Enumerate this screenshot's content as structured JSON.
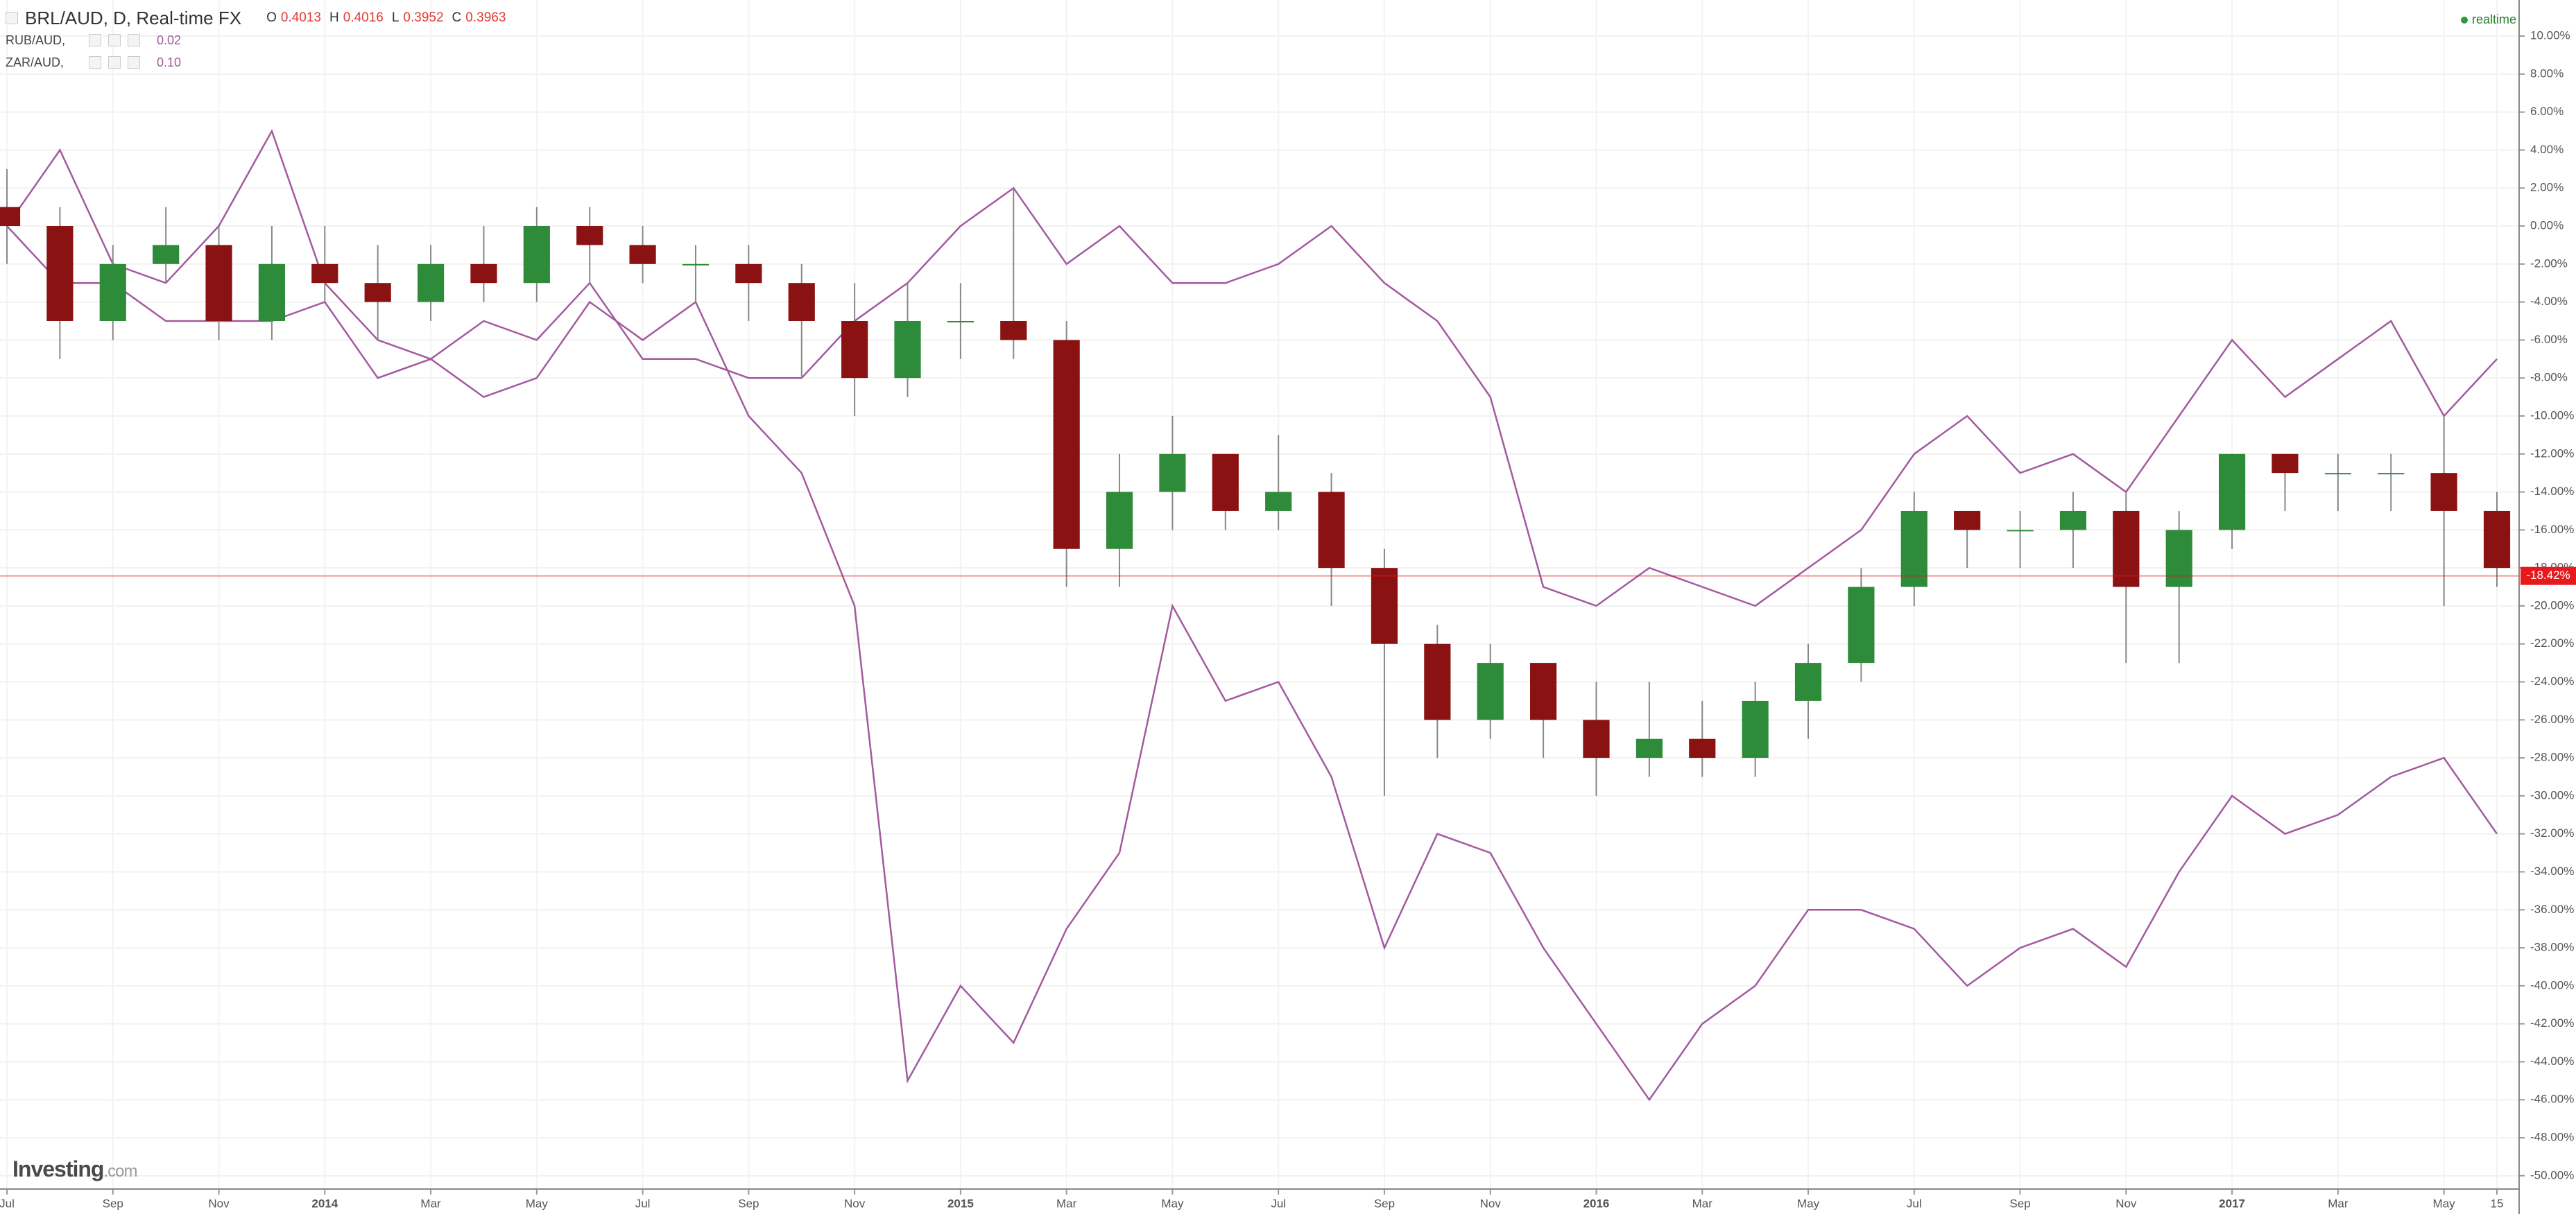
{
  "chart_data": {
    "type": "candlestick",
    "title": "BRL/AUD, D, Real-time FX",
    "quote": [
      {
        "label": "O",
        "value": 0.4013
      },
      {
        "label": "H",
        "value": 0.4016
      },
      {
        "label": "L",
        "value": 0.3952
      },
      {
        "label": "C",
        "value": 0.3963
      }
    ],
    "status": "realtime",
    "brand": "Investing",
    "brand_suffix": ".com",
    "categories": [
      "Jul",
      null,
      "Sep",
      null,
      "Nov",
      null,
      "2014",
      null,
      "Mar",
      null,
      "May",
      null,
      "Jul",
      null,
      "Sep",
      null,
      "Nov",
      null,
      "2015",
      null,
      "Mar",
      null,
      "May",
      null,
      "Jul",
      null,
      "Sep",
      null,
      "Nov",
      null,
      "2016",
      null,
      "Mar",
      null,
      "May",
      null,
      "Jul",
      null,
      "Sep",
      null,
      "Nov",
      null,
      "2017",
      null,
      "Mar",
      null,
      "May",
      "15"
    ],
    "candles": {
      "up_color": "#2e8b3a",
      "down_color": "#8b1212",
      "wick_color": "#888888",
      "open": [
        1,
        0,
        -5,
        -2,
        -1,
        -5,
        -2,
        -3,
        -4,
        -2,
        -3,
        0,
        -1,
        -2,
        -2,
        -3,
        -5,
        -8,
        -5,
        -5,
        -6,
        -17,
        -14,
        -12,
        -15,
        -14,
        -18,
        -22,
        -26,
        -23,
        -26,
        -28,
        -27,
        -28,
        -25,
        -23,
        -19,
        -15,
        -16,
        -16,
        -15,
        -19,
        -16,
        -12,
        -13,
        -13,
        -13,
        -15
      ],
      "high": [
        3,
        1,
        -1,
        1,
        0,
        0,
        0,
        -1,
        -1,
        0,
        1,
        1,
        0,
        -1,
        -1,
        -2,
        -3,
        -3,
        -3,
        2,
        -5,
        -12,
        -10,
        -12,
        -11,
        -13,
        -17,
        -21,
        -22,
        -23,
        -24,
        -24,
        -25,
        -24,
        -22,
        -18,
        -14,
        -15,
        -15,
        -14,
        -14,
        -15,
        -12,
        -12,
        -12,
        -12,
        -10,
        -14
      ],
      "low": [
        -2,
        -7,
        -6,
        -3,
        -6,
        -6,
        -4,
        -6,
        -5,
        -4,
        -4,
        -3,
        -3,
        -4,
        -5,
        -8,
        -10,
        -9,
        -7,
        -7,
        -19,
        -19,
        -16,
        -16,
        -16,
        -20,
        -30,
        -28,
        -27,
        -28,
        -30,
        -29,
        -29,
        -29,
        -27,
        -24,
        -20,
        -18,
        -18,
        -18,
        -23,
        -23,
        -17,
        -15,
        -15,
        -15,
        -20,
        -19
      ],
      "close": [
        0,
        -5,
        -2,
        -1,
        -5,
        -2,
        -3,
        -4,
        -2,
        -3,
        0,
        -1,
        -2,
        -2,
        -3,
        -5,
        -8,
        -5,
        -5,
        -6,
        -17,
        -14,
        -12,
        -15,
        -14,
        -18,
        -22,
        -26,
        -23,
        -26,
        -28,
        -27,
        -28,
        -25,
        -23,
        -19,
        -15,
        -16,
        -16,
        -15,
        -19,
        -16,
        -12,
        -13,
        -13,
        -13,
        -15,
        -18
      ]
    },
    "series": [
      {
        "name": "RUB/AUD,",
        "price": "0.02",
        "color": "#a35a9e",
        "values": [
          0,
          -3,
          -3,
          -5,
          -5,
          -5,
          -4,
          -8,
          -7,
          -9,
          -8,
          -4,
          -6,
          -4,
          -10,
          -13,
          -20,
          -45,
          -40,
          -43,
          -37,
          -33,
          -20,
          -25,
          -24,
          -29,
          -38,
          -32,
          -33,
          -38,
          -42,
          -46,
          -42,
          -40,
          -36,
          -36,
          -37,
          -40,
          -38,
          -37,
          -39,
          -34,
          -30,
          -32,
          -31,
          -29,
          -28,
          -32
        ]
      },
      {
        "name": "ZAR/AUD,",
        "price": "0.10",
        "color": "#a35a9e",
        "values": [
          0,
          4,
          -2,
          -3,
          0,
          5,
          -3,
          -6,
          -7,
          -5,
          -6,
          -3,
          -7,
          -7,
          -8,
          -8,
          -5,
          -3,
          0,
          2,
          -2,
          0,
          -3,
          -3,
          -2,
          0,
          -3,
          -5,
          -9,
          -19,
          -20,
          -18,
          -19,
          -20,
          -18,
          -16,
          -12,
          -10,
          -13,
          -12,
          -14,
          -10,
          -6,
          -9,
          -7,
          -5,
          -10,
          -7
        ]
      }
    ],
    "last": {
      "value": -18.42,
      "label": "-18.42%",
      "color": "#e8191c"
    },
    "ylim": [
      -50.7,
      11.9
    ],
    "yticks": [
      {
        "value": 10,
        "label": "10.00%"
      },
      {
        "value": 8,
        "label": "8.00%"
      },
      {
        "value": 6,
        "label": "6.00%"
      },
      {
        "value": 4,
        "label": "4.00%"
      },
      {
        "value": 2,
        "label": "2.00%"
      },
      {
        "value": 0,
        "label": "0.00%"
      },
      {
        "value": -2,
        "label": "-2.00%"
      },
      {
        "value": -4,
        "label": "-4.00%"
      },
      {
        "value": -6,
        "label": "-6.00%"
      },
      {
        "value": -8,
        "label": "-8.00%"
      },
      {
        "value": -10,
        "label": "-10.00%"
      },
      {
        "value": -12,
        "label": "-12.00%"
      },
      {
        "value": -14,
        "label": "-14.00%"
      },
      {
        "value": -16,
        "label": "-16.00%"
      },
      {
        "value": -18,
        "label": "-18.00%"
      },
      {
        "value": -20,
        "label": "-20.00%"
      },
      {
        "value": -22,
        "label": "-22.00%"
      },
      {
        "value": -24,
        "label": "-24.00%"
      },
      {
        "value": -26,
        "label": "-26.00%"
      },
      {
        "value": -28,
        "label": "-28.00%"
      },
      {
        "value": -30,
        "label": "-30.00%"
      },
      {
        "value": -32,
        "label": "-32.00%"
      },
      {
        "value": -34,
        "label": "-34.00%"
      },
      {
        "value": -36,
        "label": "-36.00%"
      },
      {
        "value": -38,
        "label": "-38.00%"
      },
      {
        "value": -40,
        "label": "-40.00%"
      },
      {
        "value": -42,
        "label": "-42.00%"
      },
      {
        "value": -44,
        "label": "-44.00%"
      },
      {
        "value": -46,
        "label": "-46.00%"
      },
      {
        "value": -48,
        "label": "-48.00%"
      },
      {
        "value": -50,
        "label": "-50.00%"
      }
    ],
    "grid": true
  }
}
